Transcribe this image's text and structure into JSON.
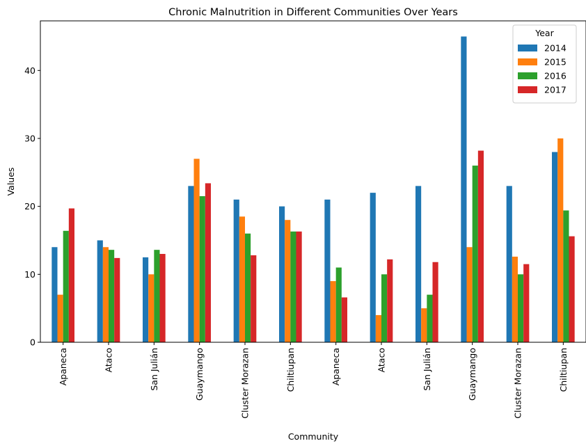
{
  "chart_data": {
    "type": "bar",
    "title": "Chronic Malnutrition in Different Communities Over Years",
    "xlabel": "Community",
    "ylabel": "Values",
    "ylim": [
      0,
      47.3
    ],
    "yticks": [
      0,
      10,
      20,
      30,
      40
    ],
    "categories": [
      "Apaneca",
      "Ataco",
      "San Julián",
      "Guaymango",
      "Cluster Morazan",
      "Chiltiupan",
      "Apaneca",
      "Ataco",
      "San Julián",
      "Guaymango",
      "Cluster Morazan",
      "Chiltiupan"
    ],
    "legend": {
      "title": "Year",
      "placement": "top-right"
    },
    "grid": false,
    "series": [
      {
        "name": "2014",
        "color": "#1f77b4",
        "values": [
          14,
          15,
          12.5,
          23,
          21,
          20,
          21,
          22,
          23,
          45,
          23,
          28
        ]
      },
      {
        "name": "2015",
        "color": "#ff7f0e",
        "values": [
          7,
          14,
          10,
          27,
          18.5,
          18,
          9,
          4,
          5,
          14,
          12.6,
          30
        ]
      },
      {
        "name": "2016",
        "color": "#2ca02c",
        "values": [
          16.4,
          13.6,
          13.6,
          21.5,
          16,
          16.3,
          11,
          10,
          7,
          26,
          10,
          19.4
        ]
      },
      {
        "name": "2017",
        "color": "#d62728",
        "values": [
          19.7,
          12.4,
          13,
          23.4,
          12.8,
          16.3,
          6.6,
          12.2,
          11.8,
          28.2,
          11.5,
          15.6
        ]
      }
    ]
  }
}
